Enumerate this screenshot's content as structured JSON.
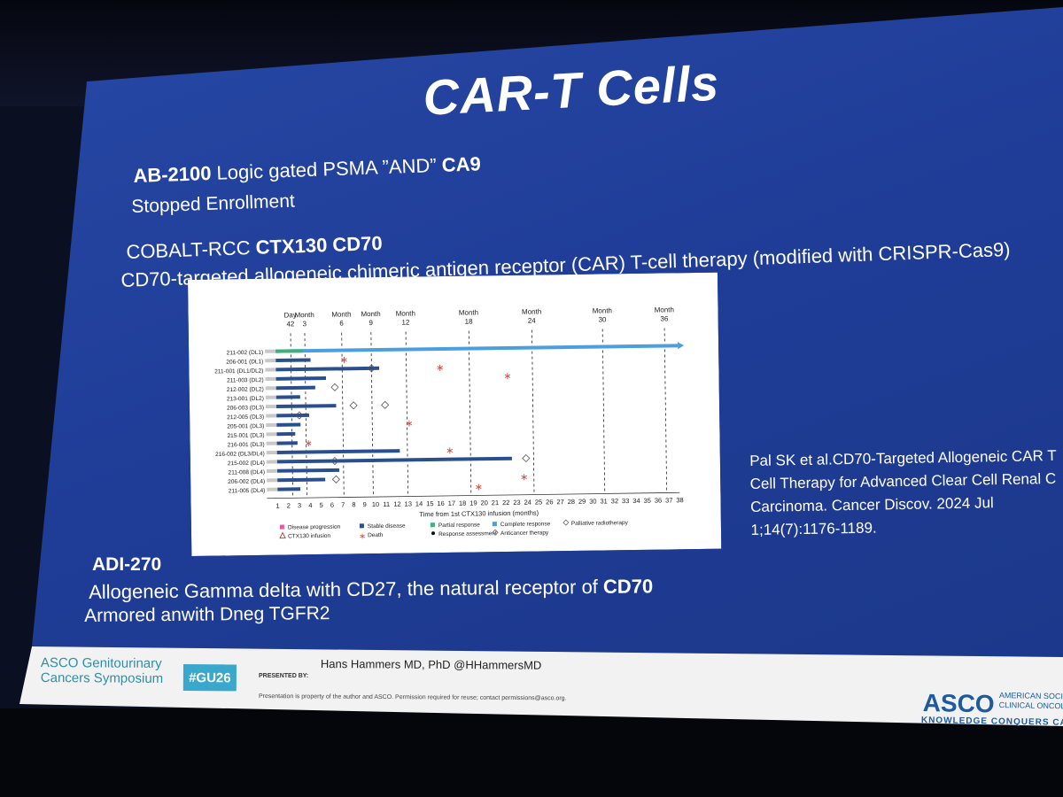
{
  "slide": {
    "title": "CAR-T Cells",
    "line1_bold": "AB-2100",
    "line1_rest": " Logic gated PSMA ”AND” ",
    "line1_bold2": "CA9",
    "line2": "Stopped Enrollment",
    "line3_pre": "COBALT-RCC ",
    "line3_bold": "CTX130 CD70",
    "line3_post": " T-cell therapy (modified with CRISPR-Cas9)",
    "line4": "CD70-targeted allogeneic chimeric antigen receptor (CAR)",
    "line5": "ADI-270",
    "line6_pre": "Allogeneic Gamma delta with CD27, the natural receptor of ",
    "line6_bold": "CD70",
    "line7": "Armored anwith Dneg TGFR2",
    "citation": [
      "Pal SK et al.CD70-Targeted Allogeneic CAR T",
      "Cell Therapy for Advanced Clear Cell Renal C",
      "Carcinoma. Cancer Discov. 2024 Jul",
      "1;14(7):1176-1189."
    ]
  },
  "footer": {
    "asco_left_1": "ASCO Genitourinary",
    "asco_left_2": "Cancers Symposium",
    "hashtag": "#GU26",
    "presented_by": "PRESENTED BY:",
    "presenter": "Hans Hammers MD, PhD @HHammersMD",
    "permission": "Presentation is property of the author and ASCO. Permission required for reuse; contact permissions@asco.org.",
    "asco_logo": "ASCO",
    "asco_society_1": "AMERICAN SOCIE",
    "asco_society_2": "CLINICAL ONCOLO",
    "asco_tagline": "KNOWLEDGE CONQUERS CAN"
  },
  "chart_data": {
    "type": "swimmer",
    "xlabel": "Time from 1st CTX130 infusion (months)",
    "xlim": [
      1,
      38
    ],
    "x_ticks": [
      1,
      2,
      3,
      4,
      5,
      6,
      7,
      8,
      9,
      10,
      11,
      12,
      13,
      14,
      15,
      16,
      17,
      18,
      19,
      20,
      21,
      22,
      23,
      24,
      25,
      26,
      27,
      28,
      29,
      30,
      31,
      32,
      33,
      34,
      35,
      36,
      37,
      38
    ],
    "timepoints": [
      {
        "label": "Day 42",
        "x": 2.4
      },
      {
        "label": "Month 3",
        "x": 3.7
      },
      {
        "label": "Month 6",
        "x": 7.1
      },
      {
        "label": "Month 9",
        "x": 9.8
      },
      {
        "label": "Month 12",
        "x": 13.0
      },
      {
        "label": "Month 18",
        "x": 18.8
      },
      {
        "label": "Month 24",
        "x": 24.6
      },
      {
        "label": "Month 30",
        "x": 31.1
      },
      {
        "label": "Month 36",
        "x": 36.8
      }
    ],
    "patients": [
      {
        "id": "211-002 (DL1)",
        "end": 38,
        "type": "complete"
      },
      {
        "id": "206-001 (DL1)",
        "end": 4.2,
        "type": "stable"
      },
      {
        "id": "211-001 (DL1/DL2)",
        "end": 10.5,
        "type": "stable"
      },
      {
        "id": "211-003 (DL2)",
        "end": 5.6,
        "type": "stable"
      },
      {
        "id": "212-002 (DL2)",
        "end": 4.6,
        "type": "stable"
      },
      {
        "id": "213-001 (DL2)",
        "end": 3.2,
        "type": "stable"
      },
      {
        "id": "206-003 (DL3)",
        "end": 6.5,
        "type": "stable"
      },
      {
        "id": "212-005 (DL3)",
        "end": 4.0,
        "type": "stable"
      },
      {
        "id": "205-001 (DL3)",
        "end": 3.2,
        "type": "stable"
      },
      {
        "id": "215-001 (DL3)",
        "end": 2.7,
        "type": "stable"
      },
      {
        "id": "216-001 (DL3)",
        "end": 2.9,
        "type": "stable"
      },
      {
        "id": "216-002 (DL3/DL4)",
        "end": 12.3,
        "type": "stable"
      },
      {
        "id": "215-002 (DL4)",
        "end": 22.6,
        "type": "stable"
      },
      {
        "id": "211-008 (DL4)",
        "end": 6.7,
        "type": "stable"
      },
      {
        "id": "206-002 (DL4)",
        "end": 5.4,
        "type": "stable"
      },
      {
        "id": "211-005 (DL4)",
        "end": 3.1,
        "type": "stable"
      }
    ],
    "deaths": [
      {
        "row": 1,
        "x": 7.3
      },
      {
        "row": 2,
        "x": 16.1
      },
      {
        "row": 3,
        "x": 22.3
      },
      {
        "row": 8,
        "x": 13.2
      },
      {
        "row": 10,
        "x": 3.9
      },
      {
        "row": 11,
        "x": 16.9
      },
      {
        "row": 14,
        "x": 23.7
      },
      {
        "row": 15,
        "x": 19.5
      }
    ],
    "therapy": [
      {
        "row": 2,
        "x": 9.8
      },
      {
        "row": 4,
        "x": 6.4
      },
      {
        "row": 6,
        "x": 8.1
      },
      {
        "row": 6,
        "x": 11.0
      },
      {
        "row": 7,
        "x": 3.1
      },
      {
        "row": 12,
        "x": 6.3
      },
      {
        "row": 12,
        "x": 23.9
      },
      {
        "row": 14,
        "x": 6.4
      }
    ],
    "legend": [
      {
        "label": "Disease progression",
        "color": "#e75aa0",
        "shape": "square"
      },
      {
        "label": "Stable disease",
        "color": "#2a4f8f",
        "shape": "square"
      },
      {
        "label": "Partial response",
        "color": "#3fb07a",
        "shape": "square"
      },
      {
        "label": "Complete response",
        "color": "#4b9ee0",
        "shape": "square"
      },
      {
        "label": "Palliative radiotherapy",
        "color": "#666666",
        "shape": "diamond"
      },
      {
        "label": "CTX130 infusion",
        "color": "#b8463a",
        "shape": "triangle"
      },
      {
        "label": "Death",
        "color": "#d9483b",
        "shape": "star"
      },
      {
        "label": "Response assessment",
        "color": "#111111",
        "shape": "dot"
      },
      {
        "label": "Anticancer therapy",
        "color": "#666666",
        "shape": "diamond"
      }
    ],
    "colors": {
      "stable": "#2a4f8f",
      "complete": "#4b9ee0",
      "partial": "#3fb07a",
      "pre": "#c8c8c8"
    }
  }
}
